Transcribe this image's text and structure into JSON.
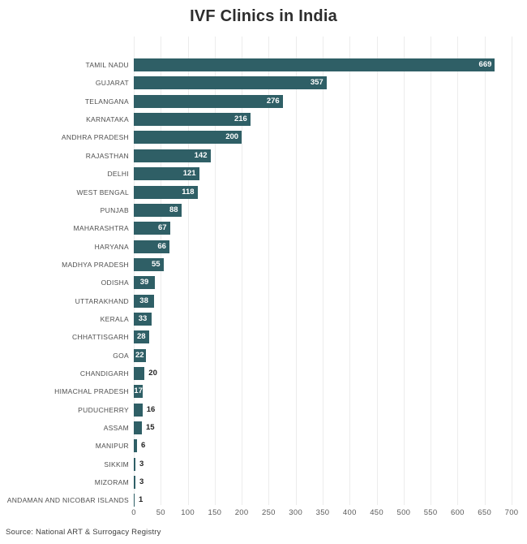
{
  "title": "IVF Clinics in India",
  "source": "Source: National ART & Surrogacy Registry",
  "colors": {
    "bar": "#2F5F66",
    "value_label_inside": "#ffffff",
    "value_label_outside": "#222222",
    "category_text": "#4f4f4f",
    "axis_tick_text": "#5a5a5a",
    "gridline": "#ececec",
    "title_text": "#2d2d2d",
    "background": "#ffffff"
  },
  "chart_data": {
    "type": "bar",
    "orientation": "horizontal",
    "title": "IVF Clinics in India",
    "xlabel": "",
    "ylabel": "",
    "xlim": [
      0,
      700
    ],
    "x_ticks": [
      0,
      50,
      100,
      150,
      200,
      250,
      300,
      350,
      400,
      450,
      500,
      550,
      600,
      650,
      700
    ],
    "grid": true,
    "legend": false,
    "categories": [
      "TAMIL NADU",
      "GUJARAT",
      "TELANGANA",
      "KARNATAKA",
      "ANDHRA PRADESH",
      "RAJASTHAN",
      "DELHI",
      "WEST BENGAL",
      "PUNJAB",
      "MAHARASHTRA",
      "HARYANA",
      "MADHYA PRADESH",
      "ODISHA",
      "UTTARAKHAND",
      "KERALA",
      "CHHATTISGARH",
      "GOA",
      "CHANDIGARH",
      "HIMACHAL PRADESH",
      "PUDUCHERRY",
      "ASSAM",
      "MANIPUR",
      "SIKKIM",
      "MIZORAM",
      "ANDAMAN AND NICOBAR ISLANDS"
    ],
    "values": [
      669,
      357,
      276,
      216,
      200,
      142,
      121,
      118,
      88,
      67,
      66,
      55,
      39,
      38,
      33,
      28,
      22,
      20,
      17,
      16,
      15,
      6,
      3,
      3,
      1
    ],
    "value_label_inside": [
      true,
      true,
      true,
      true,
      true,
      true,
      true,
      true,
      true,
      true,
      true,
      true,
      true,
      true,
      true,
      true,
      true,
      false,
      true,
      false,
      false,
      false,
      false,
      false,
      false
    ]
  }
}
